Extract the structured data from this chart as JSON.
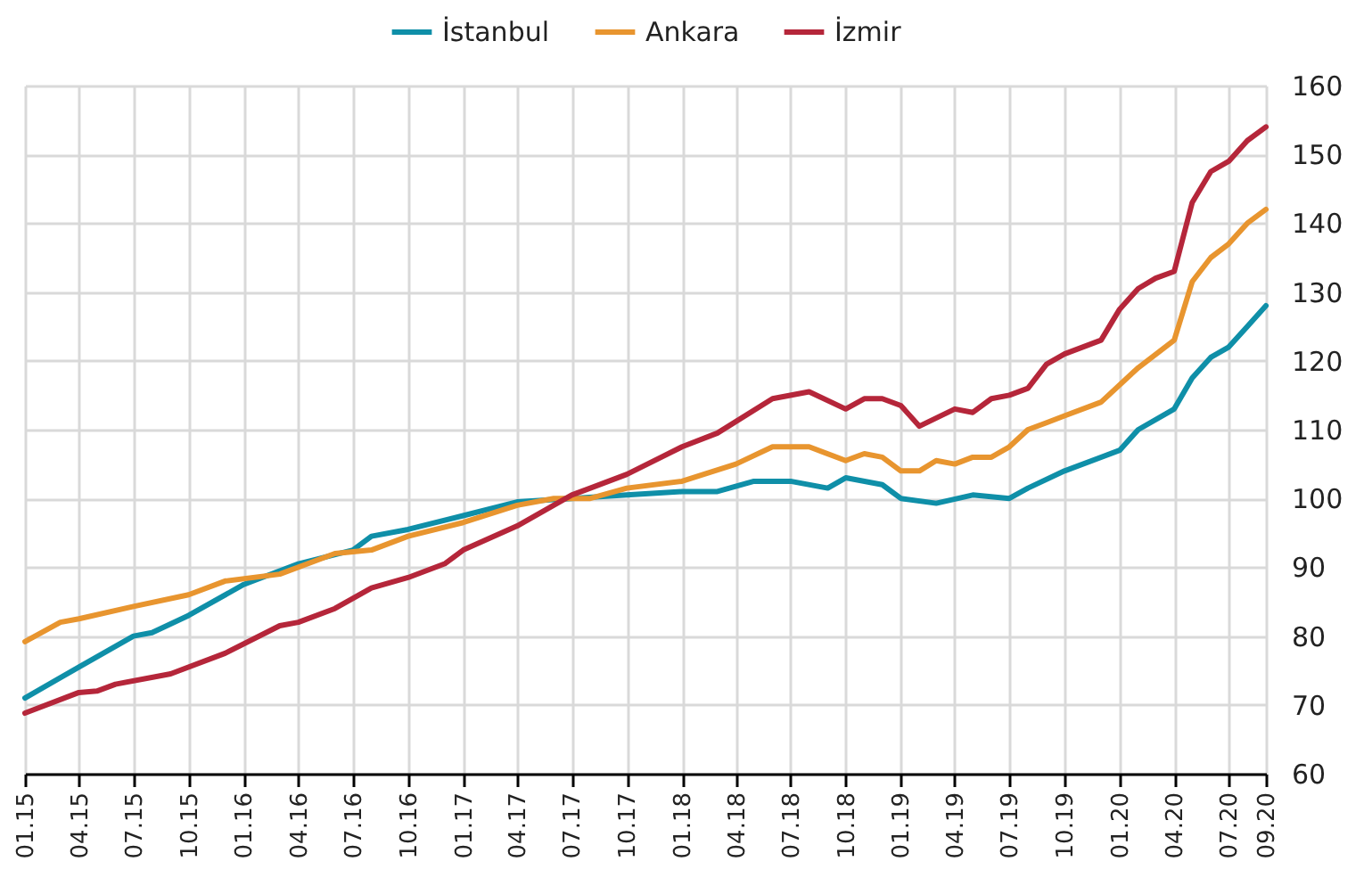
{
  "chart_data": {
    "type": "line",
    "legend": "top",
    "grid": true,
    "xlim": [
      "2015-01",
      "2020-09"
    ],
    "ylim": [
      60,
      160
    ],
    "yticks": [
      60,
      70,
      80,
      90,
      100,
      110,
      120,
      130,
      140,
      150,
      160
    ],
    "xticks": [
      {
        "value": "2015-01",
        "label": "01.15"
      },
      {
        "value": "2015-04",
        "label": "04.15"
      },
      {
        "value": "2015-07",
        "label": "07.15"
      },
      {
        "value": "2015-10",
        "label": "10.15"
      },
      {
        "value": "2016-01",
        "label": "01.16"
      },
      {
        "value": "2016-04",
        "label": "04.16"
      },
      {
        "value": "2016-07",
        "label": "07.16"
      },
      {
        "value": "2016-10",
        "label": "10.16"
      },
      {
        "value": "2017-01",
        "label": "01.17"
      },
      {
        "value": "2017-04",
        "label": "04.17"
      },
      {
        "value": "2017-07",
        "label": "07.17"
      },
      {
        "value": "2017-10",
        "label": "10.17"
      },
      {
        "value": "2018-01",
        "label": "01.18"
      },
      {
        "value": "2018-04",
        "label": "04.18"
      },
      {
        "value": "2018-07",
        "label": "07.18"
      },
      {
        "value": "2018-10",
        "label": "10.18"
      },
      {
        "value": "2019-01",
        "label": "01.19"
      },
      {
        "value": "2019-04",
        "label": "04.19"
      },
      {
        "value": "2019-07",
        "label": "07.19"
      },
      {
        "value": "2019-10",
        "label": "10.19"
      },
      {
        "value": "2020-01",
        "label": "01.20"
      },
      {
        "value": "2020-04",
        "label": "04.20"
      },
      {
        "value": "2020-07",
        "label": "07.20"
      },
      {
        "value": "2020-09",
        "label": "09.20"
      }
    ],
    "series": [
      {
        "name": "İstanbul",
        "color": "#0f8fa8",
        "x": [
          "2015-01",
          "2015-04",
          "2015-07",
          "2015-08",
          "2015-10",
          "2016-01",
          "2016-04",
          "2016-07",
          "2016-08",
          "2016-10",
          "2017-01",
          "2017-04",
          "2017-07",
          "2017-10",
          "2018-01",
          "2018-03",
          "2018-05",
          "2018-07",
          "2018-09",
          "2018-10",
          "2018-12",
          "2019-01",
          "2019-03",
          "2019-05",
          "2019-07",
          "2019-08",
          "2019-10",
          "2020-01",
          "2020-02",
          "2020-04",
          "2020-05",
          "2020-06",
          "2020-07",
          "2020-08",
          "2020-09"
        ],
        "values": [
          71,
          75.5,
          80,
          80.5,
          83,
          87.5,
          90.5,
          92.5,
          94.5,
          95.5,
          97.5,
          99.5,
          100,
          100.5,
          101,
          101,
          102.5,
          102.5,
          101.5,
          103,
          102,
          100,
          99.3,
          100.5,
          100,
          101.5,
          104,
          107,
          110,
          113,
          117.5,
          120.5,
          122,
          125,
          128
        ]
      },
      {
        "name": "Ankara",
        "color": "#e8952f",
        "x": [
          "2015-01",
          "2015-03",
          "2015-04",
          "2015-07",
          "2015-10",
          "2015-12",
          "2016-03",
          "2016-06",
          "2016-08",
          "2016-10",
          "2017-01",
          "2017-04",
          "2017-06",
          "2017-08",
          "2017-10",
          "2018-01",
          "2018-04",
          "2018-06",
          "2018-08",
          "2018-10",
          "2018-11",
          "2018-12",
          "2019-01",
          "2019-02",
          "2019-03",
          "2019-04",
          "2019-05",
          "2019-06",
          "2019-07",
          "2019-08",
          "2019-09",
          "2019-10",
          "2019-12",
          "2020-02",
          "2020-04",
          "2020-05",
          "2020-06",
          "2020-07",
          "2020-08",
          "2020-09"
        ],
        "values": [
          79.2,
          82,
          82.5,
          84.3,
          86,
          88,
          89,
          92,
          92.5,
          94.5,
          96.5,
          99,
          100,
          100,
          101.5,
          102.5,
          105,
          107.5,
          107.5,
          105.5,
          106.5,
          106,
          104,
          104,
          105.5,
          105,
          106,
          106,
          107.5,
          110,
          111,
          112,
          114,
          119,
          123,
          131.5,
          135,
          137,
          140,
          142
        ]
      },
      {
        "name": "İzmir",
        "color": "#b5263a",
        "x": [
          "2015-01",
          "2015-04",
          "2015-05",
          "2015-06",
          "2015-09",
          "2015-12",
          "2016-03",
          "2016-04",
          "2016-06",
          "2016-08",
          "2016-10",
          "2016-12",
          "2017-01",
          "2017-04",
          "2017-07",
          "2017-08",
          "2017-10",
          "2018-01",
          "2018-03",
          "2018-06",
          "2018-08",
          "2018-10",
          "2018-11",
          "2018-12",
          "2019-01",
          "2019-02",
          "2019-04",
          "2019-05",
          "2019-06",
          "2019-07",
          "2019-08",
          "2019-09",
          "2019-10",
          "2019-12",
          "2020-01",
          "2020-02",
          "2020-03",
          "2020-04",
          "2020-05",
          "2020-06",
          "2020-07",
          "2020-08",
          "2020-09"
        ],
        "values": [
          68.8,
          71.8,
          72,
          73,
          74.5,
          77.5,
          81.5,
          82,
          84,
          87,
          88.5,
          90.5,
          92.5,
          96,
          100.5,
          101.5,
          103.5,
          107.5,
          109.5,
          114.5,
          115.5,
          113,
          114.5,
          114.5,
          113.5,
          110.5,
          113,
          112.5,
          114.5,
          115,
          116,
          119.5,
          121,
          123,
          127.5,
          130.5,
          132,
          133,
          143,
          147.5,
          149,
          152,
          154
        ]
      }
    ]
  }
}
